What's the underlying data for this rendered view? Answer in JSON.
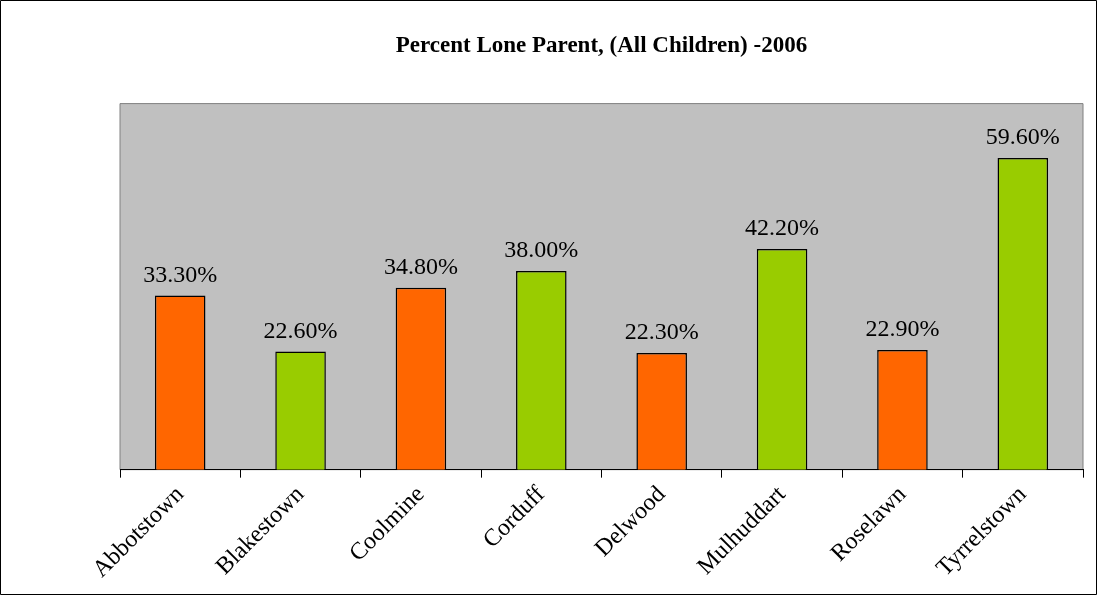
{
  "chart_data": {
    "type": "bar",
    "title": "Percent Lone Parent, (All Children) -2006",
    "categories": [
      "Abbotstown",
      "Blakestown",
      "Coolmine",
      "Corduff",
      "Delwood",
      "Mulhuddart",
      "Roselawn",
      "Tyrrelstown"
    ],
    "values": [
      33.3,
      22.6,
      34.8,
      38.0,
      22.3,
      42.2,
      22.9,
      59.6
    ],
    "colors": [
      "#ff6600",
      "#99cc00",
      "#ff6600",
      "#99cc00",
      "#ff6600",
      "#99cc00",
      "#ff6600",
      "#99cc00"
    ],
    "value_labels": [
      "33.30%",
      "22.60%",
      "34.80%",
      "38.00%",
      "22.30%",
      "42.20%",
      "22.90%",
      "59.60%"
    ],
    "ylim": [
      0,
      70
    ],
    "legend": false
  }
}
